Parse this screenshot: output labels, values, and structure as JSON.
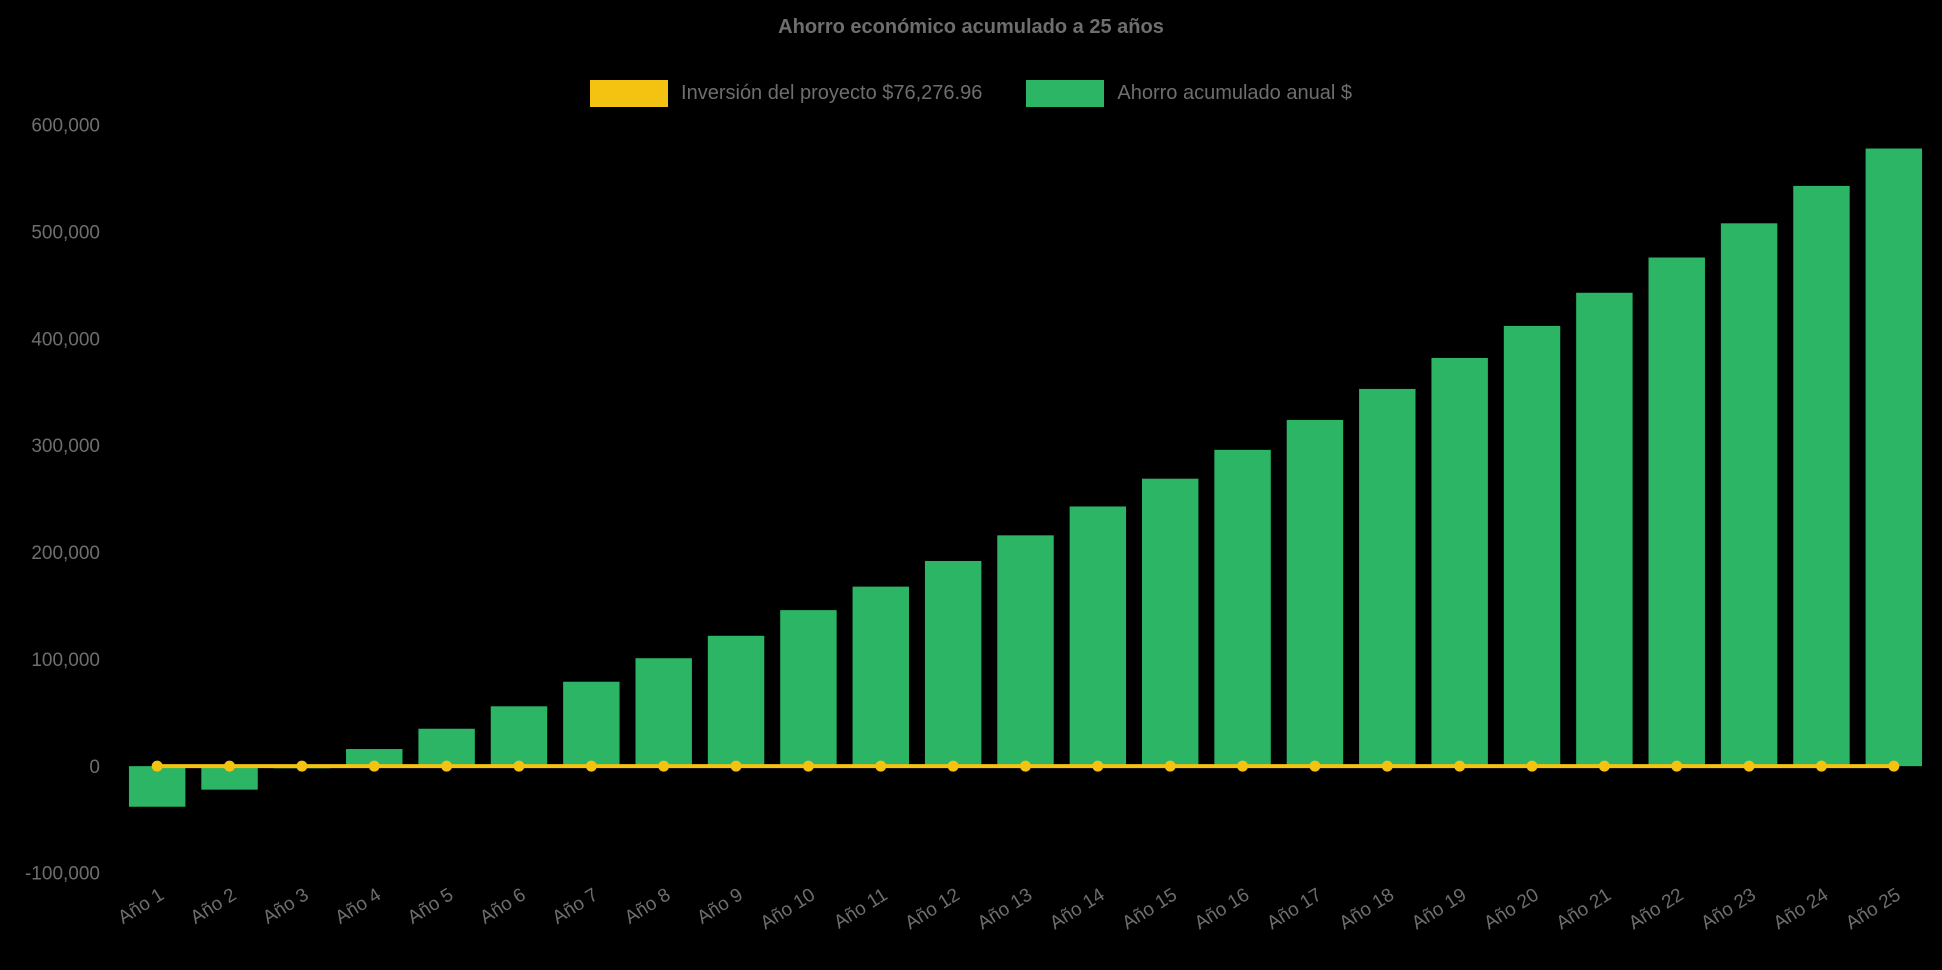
{
  "chart_data": {
    "type": "bar",
    "title": "Ahorro económico acumulado a 25 años",
    "categories": [
      "Año 1",
      "Año 2",
      "Año 3",
      "Año 4",
      "Año 5",
      "Año 6",
      "Año 7",
      "Año 8",
      "Año 9",
      "Año 10",
      "Año 11",
      "Año 12",
      "Año 13",
      "Año 14",
      "Año 15",
      "Año 16",
      "Año 17",
      "Año 18",
      "Año 19",
      "Año 20",
      "Año 21",
      "Año 22",
      "Año 23",
      "Año 24",
      "Año 25"
    ],
    "series": [
      {
        "name": "Inversión del proyecto $76,276.96",
        "type": "line",
        "color": "#f4c211",
        "values": [
          0,
          0,
          0,
          0,
          0,
          0,
          0,
          0,
          0,
          0,
          0,
          0,
          0,
          0,
          0,
          0,
          0,
          0,
          0,
          0,
          0,
          0,
          0,
          0,
          0
        ]
      },
      {
        "name": "Ahorro acumulado anual $",
        "type": "bar",
        "color": "#2bb564",
        "values": [
          -38000,
          -22000,
          -2000,
          16000,
          35000,
          56000,
          79000,
          101000,
          122000,
          146000,
          168000,
          192000,
          216000,
          243000,
          269000,
          296000,
          324000,
          353000,
          382000,
          412000,
          443000,
          476000,
          508000,
          543000,
          578000
        ]
      }
    ],
    "ylim": [
      -100000,
      600000
    ],
    "ytick_step": 100000,
    "ytick_labels": [
      "-100,000",
      "0",
      "100,000",
      "200,000",
      "300,000",
      "400,000",
      "500,000",
      "600,000"
    ],
    "grid": false,
    "legend_position": "top",
    "background": "#000000",
    "text_color": "#6e6e6e"
  }
}
